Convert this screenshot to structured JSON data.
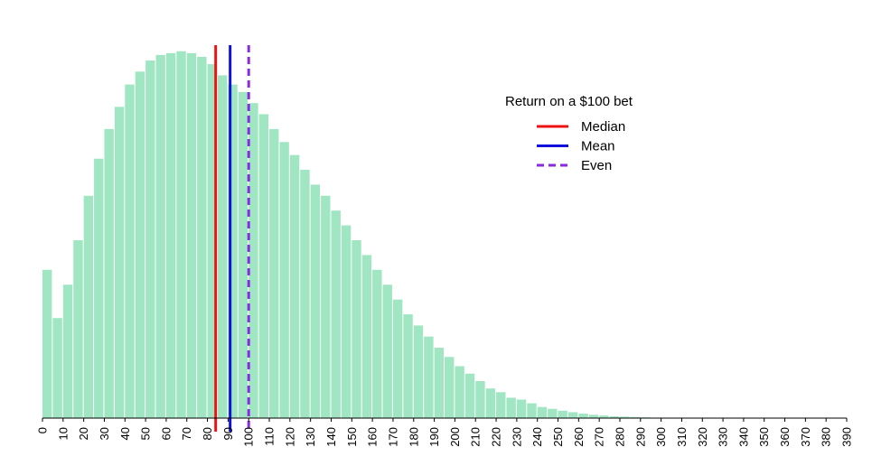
{
  "chart_data": {
    "type": "bar",
    "title": "",
    "xlabel": "",
    "ylabel": "",
    "bin_width": 5,
    "bin_starts": [
      0,
      5,
      10,
      15,
      20,
      25,
      30,
      35,
      40,
      45,
      50,
      55,
      60,
      65,
      70,
      75,
      80,
      85,
      90,
      95,
      100,
      105,
      110,
      115,
      120,
      125,
      130,
      135,
      140,
      145,
      150,
      155,
      160,
      165,
      170,
      175,
      180,
      185,
      190,
      195,
      200,
      205,
      210,
      215,
      220,
      225,
      230,
      235,
      240,
      245,
      250,
      255,
      260,
      265,
      270,
      275,
      280,
      285,
      290,
      295
    ],
    "values": [
      0.4,
      0.27,
      0.36,
      0.48,
      0.6,
      0.7,
      0.78,
      0.84,
      0.9,
      0.935,
      0.965,
      0.98,
      0.985,
      0.99,
      0.985,
      0.975,
      0.955,
      0.925,
      0.9,
      0.88,
      0.85,
      0.82,
      0.78,
      0.745,
      0.71,
      0.67,
      0.63,
      0.6,
      0.56,
      0.52,
      0.48,
      0.44,
      0.4,
      0.36,
      0.32,
      0.28,
      0.25,
      0.22,
      0.19,
      0.165,
      0.14,
      0.12,
      0.1,
      0.08,
      0.07,
      0.055,
      0.05,
      0.04,
      0.03,
      0.025,
      0.02,
      0.016,
      0.012,
      0.009,
      0.007,
      0.005,
      0.004,
      0.003,
      0.002,
      0.001
    ],
    "xlim": [
      0,
      390
    ],
    "ylim": [
      0,
      1.06
    ],
    "x_ticks": [
      0,
      10,
      20,
      30,
      40,
      50,
      60,
      70,
      80,
      90,
      100,
      110,
      120,
      130,
      140,
      150,
      160,
      170,
      180,
      190,
      200,
      210,
      220,
      230,
      240,
      250,
      260,
      270,
      280,
      290,
      300,
      310,
      320,
      330,
      340,
      350,
      360,
      370,
      380,
      390
    ],
    "y_axis_visible": false,
    "grid": false,
    "bar_color": "#a0e6c3",
    "vertical_lines": [
      {
        "name": "Median",
        "x": 84,
        "color": "#ee1111",
        "style": "solid"
      },
      {
        "name": "Mean",
        "x": 91,
        "color": "#1010dd",
        "style": "solid"
      },
      {
        "name": "Even",
        "x": 100,
        "color": "#8a2be2",
        "style": "dashed"
      }
    ],
    "legend": {
      "title": "Return on a $100 bet",
      "placement": "top-right",
      "entries": [
        "Median",
        "Mean",
        "Even"
      ]
    }
  }
}
